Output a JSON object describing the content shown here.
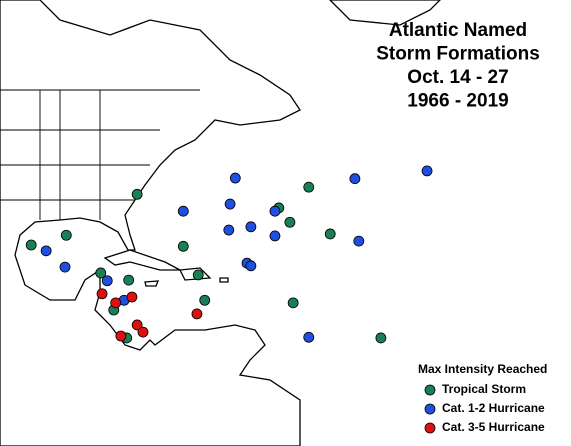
{
  "chart_data": {
    "type": "map",
    "title": [
      "Atlantic Named",
      "Storm Formations",
      "Oct. 14 - 27",
      "1966 - 2019"
    ],
    "legend_title": "Max Intensity Reached",
    "series": [
      {
        "name": "Tropical Storm",
        "color": "#1a7f55",
        "lon": [
          -78.9,
          -52.5,
          -57.1,
          -55.4,
          -49.2,
          -95.2,
          -89.8,
          -71.8,
          -84.5,
          -80.2,
          -69.5,
          -68.5,
          -54.9,
          -82.5,
          -80.5,
          -41.4
        ],
        "lat": [
          32.8,
          33.9,
          30.7,
          28.5,
          26.7,
          25.0,
          26.5,
          24.8,
          20.7,
          19.6,
          20.4,
          16.5,
          16.1,
          15.0,
          10.7,
          10.7
        ]
      },
      {
        "name": "Cat. 1-2 Hurricane",
        "color": "#1f4fe0",
        "lon": [
          -63.8,
          -45.4,
          -34.3,
          -71.8,
          -64.6,
          -64.8,
          -61.4,
          -57.7,
          -57.7,
          -44.8,
          -92.9,
          -90.0,
          -62.0,
          -61.4,
          -83.5,
          -80.9,
          -52.5
        ],
        "lat": [
          35.3,
          35.2,
          36.4,
          30.2,
          31.3,
          27.3,
          27.8,
          30.2,
          26.4,
          25.6,
          24.1,
          21.6,
          22.2,
          21.8,
          19.5,
          16.5,
          10.8
        ]
      },
      {
        "name": "Cat. 3-5 Hurricane",
        "color": "#e01010",
        "lon": [
          -84.3,
          -82.2,
          -79.7,
          -69.7,
          -78.9,
          -78.0,
          -81.4
        ],
        "lat": [
          17.5,
          16.1,
          17.0,
          14.4,
          12.7,
          11.6,
          11.0
        ]
      }
    ]
  }
}
